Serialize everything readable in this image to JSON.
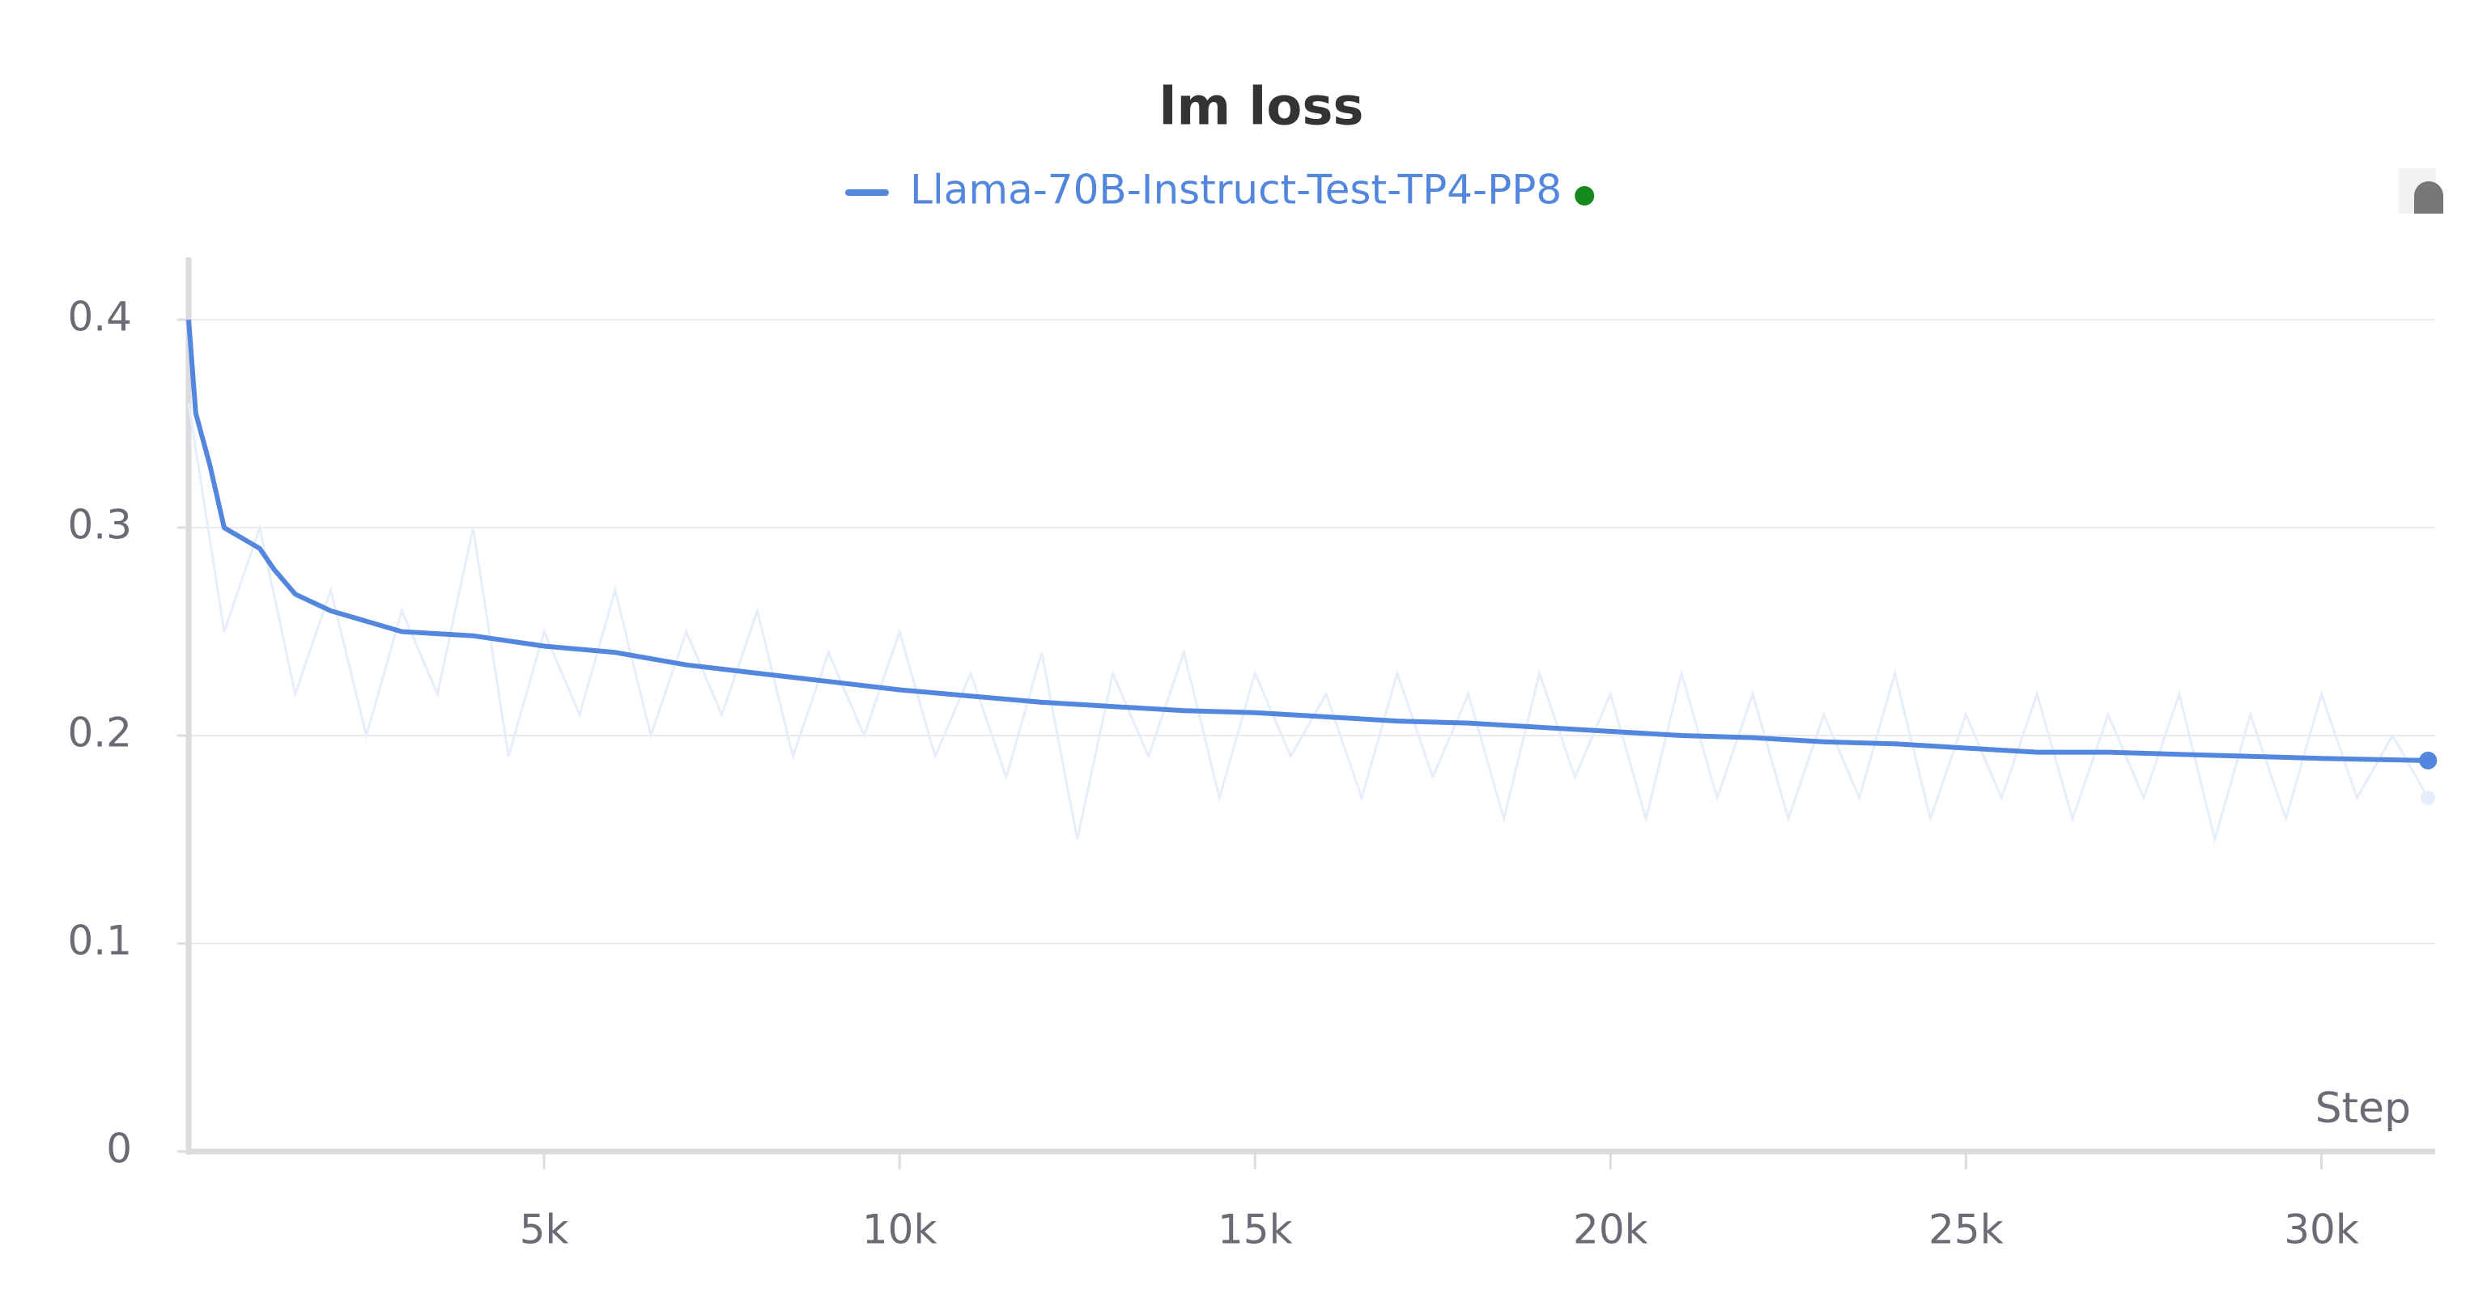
{
  "chart_data": {
    "type": "line",
    "title": "lm loss",
    "x_label": "Step",
    "xlim": [
      0,
      31600
    ],
    "ylim": [
      0,
      0.43
    ],
    "xticks": [
      {
        "value": 5000,
        "label": "5k"
      },
      {
        "value": 10000,
        "label": "10k"
      },
      {
        "value": 15000,
        "label": "15k"
      },
      {
        "value": 20000,
        "label": "20k"
      },
      {
        "value": 25000,
        "label": "25k"
      },
      {
        "value": 30000,
        "label": "30k"
      }
    ],
    "yticks": [
      0,
      0.1,
      0.2,
      0.3,
      0.4
    ],
    "grid": true,
    "legend": "top",
    "series": [
      {
        "name": "Llama-70B-Instruct-Test-TP4-PP8",
        "color": "#5387dd",
        "x": [
          0,
          100,
          300,
          500,
          1000,
          1200,
          1500,
          2000,
          2500,
          3000,
          4000,
          5000,
          6000,
          7000,
          8000,
          9000,
          10000,
          11000,
          12000,
          13000,
          14000,
          15000,
          16000,
          17000,
          18000,
          19000,
          20000,
          21000,
          22000,
          23000,
          24000,
          25000,
          26000,
          27000,
          28000,
          29000,
          30000,
          31500
        ],
        "values": [
          0.4,
          0.355,
          0.33,
          0.3,
          0.29,
          0.28,
          0.268,
          0.26,
          0.255,
          0.25,
          0.248,
          0.243,
          0.24,
          0.234,
          0.23,
          0.226,
          0.222,
          0.219,
          0.216,
          0.214,
          0.212,
          0.211,
          0.209,
          0.207,
          0.206,
          0.204,
          0.202,
          0.2,
          0.199,
          0.197,
          0.196,
          0.194,
          0.192,
          0.192,
          0.191,
          0.19,
          0.189,
          0.188
        ]
      }
    ],
    "raw": {
      "color": "#e6eefb",
      "x": [
        0,
        500,
        1000,
        1500,
        2000,
        2500,
        3000,
        3500,
        4000,
        4500,
        5000,
        5500,
        6000,
        6500,
        7000,
        7500,
        8000,
        8500,
        9000,
        9500,
        10000,
        10500,
        11000,
        11500,
        12000,
        12500,
        13000,
        13500,
        14000,
        14500,
        15000,
        15500,
        16000,
        16500,
        17000,
        17500,
        18000,
        18500,
        19000,
        19500,
        20000,
        20500,
        21000,
        21500,
        22000,
        22500,
        23000,
        23500,
        24000,
        24500,
        25000,
        25500,
        26000,
        26500,
        27000,
        27500,
        28000,
        28500,
        29000,
        29500,
        30000,
        30500,
        31000,
        31500
      ],
      "values": [
        0.36,
        0.25,
        0.3,
        0.22,
        0.27,
        0.2,
        0.26,
        0.22,
        0.3,
        0.19,
        0.25,
        0.21,
        0.27,
        0.2,
        0.25,
        0.21,
        0.26,
        0.19,
        0.24,
        0.2,
        0.25,
        0.19,
        0.23,
        0.18,
        0.24,
        0.15,
        0.23,
        0.19,
        0.24,
        0.17,
        0.23,
        0.19,
        0.22,
        0.17,
        0.23,
        0.18,
        0.22,
        0.16,
        0.23,
        0.18,
        0.22,
        0.16,
        0.23,
        0.17,
        0.22,
        0.16,
        0.21,
        0.17,
        0.23,
        0.16,
        0.21,
        0.17,
        0.22,
        0.16,
        0.21,
        0.17,
        0.22,
        0.15,
        0.21,
        0.16,
        0.22,
        0.17,
        0.2,
        0.17
      ]
    }
  }
}
